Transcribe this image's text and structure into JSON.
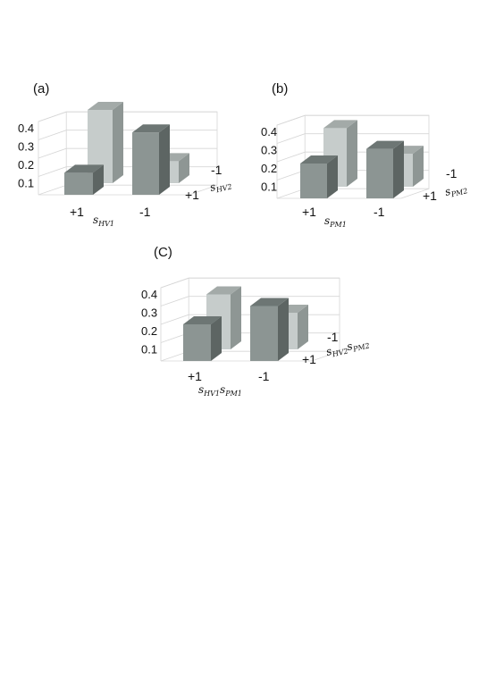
{
  "chart_data": [
    {
      "type": "bar",
      "panel_label": "(a)",
      "ylim": [
        0,
        0.4
      ],
      "yticks": [
        "0.1",
        "0.2",
        "0.3",
        "0.4"
      ],
      "x_categories": [
        "+1",
        "-1"
      ],
      "depth_categories": [
        "-1",
        "+1"
      ],
      "x_axis_label": {
        "base": "s",
        "sub": "HV1"
      },
      "depth_axis_label": {
        "base": "s",
        "sub": "HV2"
      },
      "series": [
        {
          "values": [
            0.12,
            0.4
          ]
        },
        {
          "values": [
            0.34,
            0.12
          ]
        }
      ],
      "grid": true
    },
    {
      "type": "bar",
      "panel_label": "(b)",
      "ylim": [
        0,
        0.4
      ],
      "yticks": [
        "0.1",
        "0.2",
        "0.3",
        "0.4"
      ],
      "x_categories": [
        "+1",
        "-1"
      ],
      "depth_categories": [
        "-1",
        "+1"
      ],
      "x_axis_label": {
        "base": "s",
        "sub": "PM1"
      },
      "depth_axis_label": {
        "base": "s",
        "sub": "PM2"
      },
      "series": [
        {
          "values": [
            0.19,
            0.32
          ]
        },
        {
          "values": [
            0.27,
            0.18
          ]
        }
      ],
      "grid": true
    },
    {
      "type": "bar",
      "panel_label": "(C)",
      "ylim": [
        0,
        0.4
      ],
      "yticks": [
        "0.1",
        "0.2",
        "0.3",
        "0.4"
      ],
      "x_categories": [
        "+1",
        "-1"
      ],
      "depth_categories": [
        "-1",
        "+1"
      ],
      "x_axis_label": {
        "base": "s",
        "sub": "HV1",
        "base2": "s",
        "sub2": "PM1"
      },
      "depth_axis_label": {
        "base": "s",
        "sub": "HV2",
        "base2": "s",
        "sub2": "PM2"
      },
      "series": [
        {
          "values": [
            0.2,
            0.3
          ]
        },
        {
          "values": [
            0.3,
            0.2
          ]
        }
      ],
      "grid": true
    }
  ],
  "colors": {
    "front_bar": "#8c9593",
    "front_bar_side": "#5d6563",
    "front_bar_top": "#6d7674",
    "back_bar": "#c6cccb",
    "back_bar_side": "#8e9694",
    "back_bar_top": "#a3aaa8"
  }
}
